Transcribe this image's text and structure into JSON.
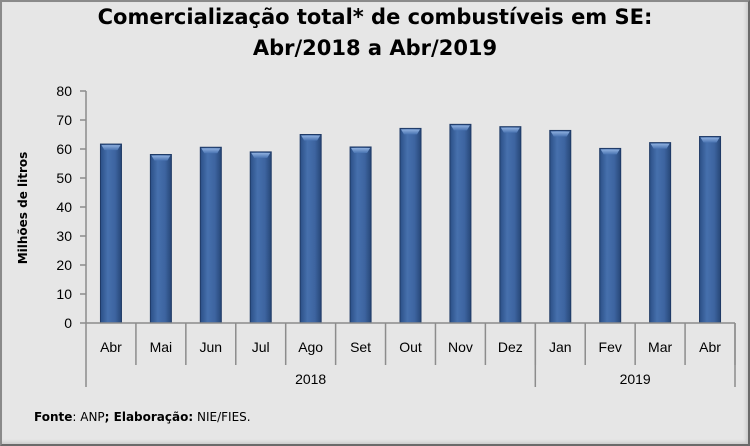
{
  "chart_data": {
    "type": "bar",
    "title": [
      "Comercialização total* de combustíveis em SE:",
      "Abr/2018 a Abr/2019"
    ],
    "ylabel": "Milhões de litros",
    "xlabel": "",
    "ylim": [
      0,
      80
    ],
    "yticks": [
      0,
      10,
      20,
      30,
      40,
      50,
      60,
      70,
      80
    ],
    "categories": [
      "Abr",
      "Mai",
      "Jun",
      "Jul",
      "Ago",
      "Set",
      "Out",
      "Nov",
      "Dez",
      "Jan",
      "Fev",
      "Mar",
      "Abr"
    ],
    "groups": [
      {
        "label": "2018",
        "count": 9
      },
      {
        "label": "2019",
        "count": 4
      }
    ],
    "values": [
      61.7,
      58.1,
      60.6,
      59.0,
      65.0,
      60.7,
      67.1,
      68.5,
      67.7,
      66.4,
      60.2,
      62.2,
      64.3
    ],
    "grid": false,
    "legend": "none",
    "bar_color": "#3d64a0",
    "bar_edge_color": "#1f3a66"
  },
  "source": {
    "fonte_label": "Fonte",
    "fonte_value": ": ANP",
    "separator": ";",
    "elaboracao_label": " Elaboração:",
    "elaboracao_value": " NIE/FIES."
  }
}
